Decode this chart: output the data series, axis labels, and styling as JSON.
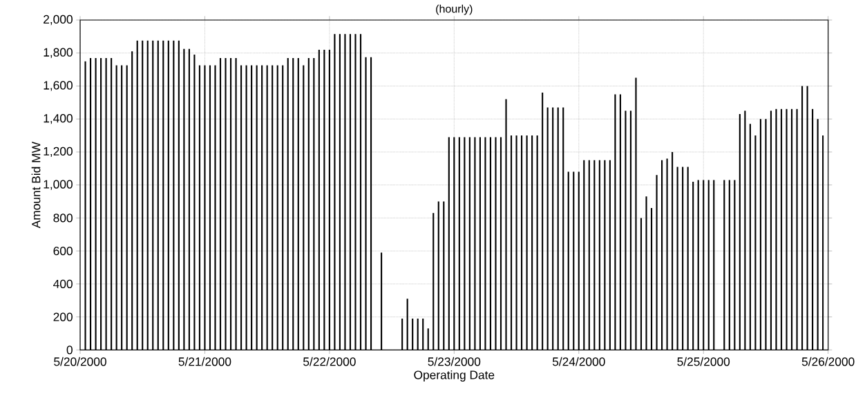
{
  "chart_data": {
    "type": "bar",
    "title": "(hourly)",
    "xlabel": "Operating Date",
    "ylabel": "Amount Bid MW",
    "x": [
      "2000-05-20T01:00",
      "2000-05-20T02:00",
      "2000-05-20T03:00",
      "2000-05-20T04:00",
      "2000-05-20T05:00",
      "2000-05-20T06:00",
      "2000-05-20T07:00",
      "2000-05-20T08:00",
      "2000-05-20T09:00",
      "2000-05-20T10:00",
      "2000-05-20T11:00",
      "2000-05-20T12:00",
      "2000-05-20T13:00",
      "2000-05-20T14:00",
      "2000-05-20T15:00",
      "2000-05-20T16:00",
      "2000-05-20T17:00",
      "2000-05-20T18:00",
      "2000-05-20T19:00",
      "2000-05-20T20:00",
      "2000-05-20T21:00",
      "2000-05-20T22:00",
      "2000-05-20T23:00",
      "2000-05-21T00:00",
      "2000-05-21T01:00",
      "2000-05-21T02:00",
      "2000-05-21T03:00",
      "2000-05-21T04:00",
      "2000-05-21T05:00",
      "2000-05-21T06:00",
      "2000-05-21T07:00",
      "2000-05-21T08:00",
      "2000-05-21T09:00",
      "2000-05-21T10:00",
      "2000-05-21T11:00",
      "2000-05-21T12:00",
      "2000-05-21T13:00",
      "2000-05-21T14:00",
      "2000-05-21T15:00",
      "2000-05-21T16:00",
      "2000-05-21T17:00",
      "2000-05-21T18:00",
      "2000-05-21T19:00",
      "2000-05-21T20:00",
      "2000-05-21T21:00",
      "2000-05-21T22:00",
      "2000-05-21T23:00",
      "2000-05-22T00:00",
      "2000-05-22T01:00",
      "2000-05-22T02:00",
      "2000-05-22T03:00",
      "2000-05-22T04:00",
      "2000-05-22T05:00",
      "2000-05-22T06:00",
      "2000-05-22T07:00",
      "2000-05-22T08:00",
      "2000-05-22T09:00",
      "2000-05-22T10:00",
      "2000-05-22T11:00",
      "2000-05-22T12:00",
      "2000-05-22T13:00",
      "2000-05-22T14:00",
      "2000-05-22T15:00",
      "2000-05-22T16:00",
      "2000-05-22T17:00",
      "2000-05-22T18:00",
      "2000-05-22T19:00",
      "2000-05-22T20:00",
      "2000-05-22T21:00",
      "2000-05-22T22:00",
      "2000-05-22T23:00",
      "2000-05-23T00:00",
      "2000-05-23T01:00",
      "2000-05-23T02:00",
      "2000-05-23T03:00",
      "2000-05-23T04:00",
      "2000-05-23T05:00",
      "2000-05-23T06:00",
      "2000-05-23T07:00",
      "2000-05-23T08:00",
      "2000-05-23T09:00",
      "2000-05-23T10:00",
      "2000-05-23T11:00",
      "2000-05-23T12:00",
      "2000-05-23T13:00",
      "2000-05-23T14:00",
      "2000-05-23T15:00",
      "2000-05-23T16:00",
      "2000-05-23T17:00",
      "2000-05-23T18:00",
      "2000-05-23T19:00",
      "2000-05-23T20:00",
      "2000-05-23T21:00",
      "2000-05-23T22:00",
      "2000-05-23T23:00",
      "2000-05-24T00:00",
      "2000-05-24T01:00",
      "2000-05-24T02:00",
      "2000-05-24T03:00",
      "2000-05-24T04:00",
      "2000-05-24T05:00",
      "2000-05-24T06:00",
      "2000-05-24T07:00",
      "2000-05-24T08:00",
      "2000-05-24T09:00",
      "2000-05-24T10:00",
      "2000-05-24T11:00",
      "2000-05-24T12:00",
      "2000-05-24T13:00",
      "2000-05-24T14:00",
      "2000-05-24T15:00",
      "2000-05-24T16:00",
      "2000-05-24T17:00",
      "2000-05-24T18:00",
      "2000-05-24T19:00",
      "2000-05-24T20:00",
      "2000-05-24T21:00",
      "2000-05-24T22:00",
      "2000-05-24T23:00",
      "2000-05-25T00:00",
      "2000-05-25T01:00",
      "2000-05-25T02:00",
      "2000-05-25T03:00",
      "2000-05-25T04:00",
      "2000-05-25T05:00",
      "2000-05-25T06:00",
      "2000-05-25T07:00",
      "2000-05-25T08:00",
      "2000-05-25T09:00",
      "2000-05-25T10:00",
      "2000-05-25T11:00",
      "2000-05-25T12:00",
      "2000-05-25T13:00",
      "2000-05-25T14:00",
      "2000-05-25T15:00",
      "2000-05-25T16:00",
      "2000-05-25T17:00",
      "2000-05-25T18:00",
      "2000-05-25T19:00",
      "2000-05-25T20:00",
      "2000-05-25T21:00",
      "2000-05-25T22:00",
      "2000-05-25T23:00"
    ],
    "values": [
      1750,
      1770,
      1770,
      1770,
      1770,
      1770,
      1725,
      1725,
      1725,
      1810,
      1875,
      1875,
      1875,
      1875,
      1875,
      1875,
      1875,
      1875,
      1875,
      1825,
      1825,
      1790,
      1725,
      1725,
      1725,
      1725,
      1770,
      1770,
      1770,
      1770,
      1725,
      1725,
      1725,
      1725,
      1725,
      1725,
      1725,
      1725,
      1725,
      1770,
      1770,
      1770,
      1725,
      1770,
      1770,
      1820,
      1820,
      1820,
      1915,
      1915,
      1915,
      1915,
      1915,
      1915,
      1775,
      1775,
      null,
      590,
      null,
      null,
      null,
      190,
      310,
      190,
      190,
      190,
      130,
      830,
      900,
      900,
      1290,
      1290,
      1290,
      1290,
      1290,
      1290,
      1290,
      1290,
      1290,
      1290,
      1290,
      1520,
      1300,
      1300,
      1300,
      1300,
      1300,
      1300,
      1560,
      1470,
      1470,
      1470,
      1470,
      1080,
      1080,
      1080,
      1150,
      1150,
      1150,
      1150,
      1150,
      1150,
      1550,
      1550,
      1450,
      1450,
      1650,
      800,
      930,
      860,
      1060,
      1150,
      1160,
      1200,
      1110,
      1110,
      1110,
      1020,
      1030,
      1030,
      1030,
      1030,
      null,
      1030,
      1030,
      1030,
      1430,
      1450,
      1370,
      1300,
      1400,
      1400,
      1450,
      1460,
      1460,
      1460,
      1460,
      1460,
      1600,
      1600,
      1460,
      1400,
      1300
    ],
    "color": "#000000",
    "xlim": [
      "2000-05-20",
      "2000-05-26"
    ],
    "xticks": [
      {
        "value": "2000-05-20",
        "label": "5/20/2000"
      },
      {
        "value": "2000-05-21",
        "label": "5/21/2000"
      },
      {
        "value": "2000-05-22",
        "label": "5/22/2000"
      },
      {
        "value": "2000-05-23",
        "label": "5/23/2000"
      },
      {
        "value": "2000-05-24",
        "label": "5/24/2000"
      },
      {
        "value": "2000-05-25",
        "label": "5/25/2000"
      },
      {
        "value": "2000-05-26",
        "label": "5/26/2000"
      }
    ],
    "ylim": [
      0,
      2000
    ],
    "yticks": [
      {
        "value": 0,
        "label": "0"
      },
      {
        "value": 200,
        "label": "200"
      },
      {
        "value": 400,
        "label": "400"
      },
      {
        "value": 600,
        "label": "600"
      },
      {
        "value": 800,
        "label": "800"
      },
      {
        "value": 1000,
        "label": "1,000"
      },
      {
        "value": 1200,
        "label": "1,200"
      },
      {
        "value": 1400,
        "label": "1,400"
      },
      {
        "value": 1600,
        "label": "1,600"
      },
      {
        "value": 1800,
        "label": "1,800"
      },
      {
        "value": 2000,
        "label": "2,000"
      }
    ],
    "grid": true
  }
}
